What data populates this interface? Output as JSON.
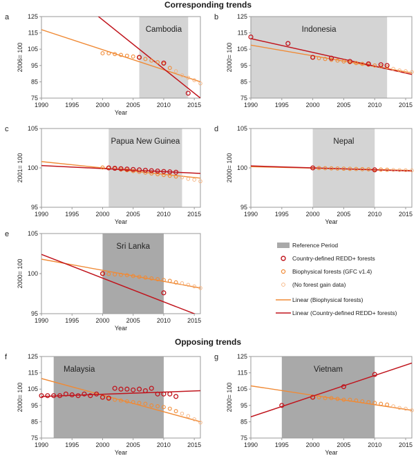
{
  "headings": {
    "corresponding": "Corresponding trends",
    "opposing": "Opposing trends"
  },
  "colors": {
    "redd": "#c0141c",
    "bio": "#f08a35",
    "bio_light": "#f5b07a",
    "ref_light": "#d4d4d4",
    "ref_dark": "#a9a9a9",
    "axis": "#9a9a9a",
    "text": "#222222"
  },
  "legend": [
    {
      "key": "ref",
      "label": "Reference Period"
    },
    {
      "key": "redd_pts",
      "label": "Country-defined REDD+ forests"
    },
    {
      "key": "bio_pts",
      "label": "Biophysical forests (GFC v1.4)"
    },
    {
      "key": "nogain",
      "label": "(No forest gain data)"
    },
    {
      "key": "bio_line",
      "label": "Linear (Biophysical forests)"
    },
    {
      "key": "redd_line",
      "label": "Linear (Country-defined REDD+ forests)"
    }
  ],
  "chart_data": [
    {
      "id": "a",
      "panel_letter": "a",
      "type": "scatter",
      "title": "Cambodia",
      "xlabel": "Year",
      "ylabel": "2006= 100",
      "xlim": [
        1990,
        2016
      ],
      "ylim": [
        75,
        125
      ],
      "xticks": [
        1990,
        1995,
        2000,
        2005,
        2010,
        2015
      ],
      "yticks": [
        75,
        85,
        95,
        105,
        115,
        125
      ],
      "ref_period": [
        2006,
        2014
      ],
      "ref_shade": "light",
      "redd_points": [
        {
          "x": 2006,
          "y": 100
        },
        {
          "x": 2010,
          "y": 96.5
        },
        {
          "x": 2014,
          "y": 78
        }
      ],
      "bio_points": [
        {
          "x": 2000,
          "y": 102.5
        },
        {
          "x": 2001,
          "y": 102.5
        },
        {
          "x": 2002,
          "y": 102
        },
        {
          "x": 2003,
          "y": 101.5
        },
        {
          "x": 2004,
          "y": 101
        },
        {
          "x": 2005,
          "y": 100.5
        },
        {
          "x": 2006,
          "y": 100
        },
        {
          "x": 2007,
          "y": 99
        },
        {
          "x": 2008,
          "y": 98
        },
        {
          "x": 2009,
          "y": 97
        },
        {
          "x": 2010,
          "y": 96
        },
        {
          "x": 2011,
          "y": 93.5
        }
      ],
      "nogain_points": [
        {
          "x": 2012,
          "y": 91.5
        },
        {
          "x": 2013,
          "y": 89
        },
        {
          "x": 2014,
          "y": 87.5
        },
        {
          "x": 2015,
          "y": 86
        },
        {
          "x": 2016,
          "y": 84
        }
      ],
      "bio_trend": {
        "x0": 1990,
        "y0": 117,
        "x1": 2016,
        "y1": 85
      },
      "redd_trend": {
        "x0": 1990,
        "y0": 153,
        "x1": 2016,
        "y1": 75
      }
    },
    {
      "id": "b",
      "panel_letter": "b",
      "type": "scatter",
      "title": "Indonesia",
      "xlabel": "",
      "ylabel": "2000= 100",
      "xlim": [
        1990,
        2016
      ],
      "ylim": [
        75,
        125
      ],
      "xticks": [
        1990,
        1995,
        2000,
        2005,
        2010,
        2015
      ],
      "yticks": [
        75,
        85,
        95,
        105,
        115,
        125
      ],
      "ref_period": [
        1990,
        2012
      ],
      "ref_shade": "light",
      "redd_points": [
        {
          "x": 1990,
          "y": 112.5
        },
        {
          "x": 1996,
          "y": 108.5
        },
        {
          "x": 2000,
          "y": 100
        },
        {
          "x": 2003,
          "y": 99.5
        },
        {
          "x": 2006,
          "y": 97.5
        },
        {
          "x": 2009,
          "y": 96
        },
        {
          "x": 2011,
          "y": 95.5
        },
        {
          "x": 2012,
          "y": 95
        }
      ],
      "bio_points": [
        {
          "x": 2000,
          "y": 100
        },
        {
          "x": 2001,
          "y": 99.5
        },
        {
          "x": 2002,
          "y": 99
        },
        {
          "x": 2003,
          "y": 98.5
        },
        {
          "x": 2004,
          "y": 98
        },
        {
          "x": 2005,
          "y": 97.5
        },
        {
          "x": 2006,
          "y": 97
        },
        {
          "x": 2007,
          "y": 96.5
        },
        {
          "x": 2008,
          "y": 96
        },
        {
          "x": 2009,
          "y": 95.5
        },
        {
          "x": 2010,
          "y": 95
        },
        {
          "x": 2011,
          "y": 94.5
        },
        {
          "x": 2012,
          "y": 94
        }
      ],
      "nogain_points": [
        {
          "x": 2013,
          "y": 93
        },
        {
          "x": 2014,
          "y": 92
        },
        {
          "x": 2015,
          "y": 91.5
        },
        {
          "x": 2016,
          "y": 91
        }
      ],
      "bio_trend": {
        "x0": 1990,
        "y0": 107.5,
        "x1": 2016,
        "y1": 90.5
      },
      "redd_trend": {
        "x0": 1990,
        "y0": 111.5,
        "x1": 2016,
        "y1": 89.5
      }
    },
    {
      "id": "c",
      "panel_letter": "c",
      "type": "scatter",
      "title": "Papua New Guinea",
      "xlabel": "Year",
      "ylabel": "2001= 100",
      "xlim": [
        1990,
        2016
      ],
      "ylim": [
        95,
        105
      ],
      "xticks": [
        1990,
        1995,
        2000,
        2005,
        2010,
        2015
      ],
      "yticks": [
        95,
        100,
        105
      ],
      "ref_period": [
        2001,
        2013
      ],
      "ref_shade": "light",
      "redd_points": [
        {
          "x": 2001,
          "y": 100
        },
        {
          "x": 2002,
          "y": 99.95
        },
        {
          "x": 2003,
          "y": 99.9
        },
        {
          "x": 2004,
          "y": 99.85
        },
        {
          "x": 2005,
          "y": 99.8
        },
        {
          "x": 2006,
          "y": 99.75
        },
        {
          "x": 2007,
          "y": 99.7
        },
        {
          "x": 2008,
          "y": 99.65
        },
        {
          "x": 2009,
          "y": 99.6
        },
        {
          "x": 2010,
          "y": 99.55
        },
        {
          "x": 2011,
          "y": 99.5
        },
        {
          "x": 2012,
          "y": 99.45
        }
      ],
      "bio_points": [
        {
          "x": 2000,
          "y": 100.05
        },
        {
          "x": 2001,
          "y": 100
        },
        {
          "x": 2002,
          "y": 99.9
        },
        {
          "x": 2003,
          "y": 99.8
        },
        {
          "x": 2004,
          "y": 99.7
        },
        {
          "x": 2005,
          "y": 99.6
        },
        {
          "x": 2006,
          "y": 99.5
        },
        {
          "x": 2007,
          "y": 99.4
        },
        {
          "x": 2008,
          "y": 99.3
        },
        {
          "x": 2009,
          "y": 99.2
        },
        {
          "x": 2010,
          "y": 99.1
        },
        {
          "x": 2011,
          "y": 99.0
        },
        {
          "x": 2012,
          "y": 98.9
        }
      ],
      "nogain_points": [
        {
          "x": 2013,
          "y": 98.8
        },
        {
          "x": 2014,
          "y": 98.6
        },
        {
          "x": 2015,
          "y": 98.5
        },
        {
          "x": 2016,
          "y": 98.3
        }
      ],
      "bio_trend": {
        "x0": 1990,
        "y0": 100.8,
        "x1": 2016,
        "y1": 98.7
      },
      "redd_trend": {
        "x0": 1990,
        "y0": 100.3,
        "x1": 2016,
        "y1": 99.3
      }
    },
    {
      "id": "d",
      "panel_letter": "d",
      "type": "scatter",
      "title": "Nepal",
      "xlabel": "Year",
      "ylabel": "2000= 100",
      "xlim": [
        1990,
        2016
      ],
      "ylim": [
        95,
        105
      ],
      "xticks": [
        1990,
        1995,
        2000,
        2005,
        2010,
        2015
      ],
      "yticks": [
        95,
        100,
        105
      ],
      "ref_period": [
        2000,
        2010
      ],
      "ref_shade": "light",
      "redd_points": [
        {
          "x": 2000,
          "y": 100
        },
        {
          "x": 2010,
          "y": 99.75
        }
      ],
      "bio_points": [
        {
          "x": 2000,
          "y": 100
        },
        {
          "x": 2001,
          "y": 99.98
        },
        {
          "x": 2002,
          "y": 99.96
        },
        {
          "x": 2003,
          "y": 99.94
        },
        {
          "x": 2004,
          "y": 99.92
        },
        {
          "x": 2005,
          "y": 99.9
        },
        {
          "x": 2006,
          "y": 99.88
        },
        {
          "x": 2007,
          "y": 99.86
        },
        {
          "x": 2008,
          "y": 99.84
        },
        {
          "x": 2009,
          "y": 99.82
        },
        {
          "x": 2010,
          "y": 99.8
        },
        {
          "x": 2011,
          "y": 99.78
        },
        {
          "x": 2012,
          "y": 99.76
        }
      ],
      "nogain_points": [
        {
          "x": 2013,
          "y": 99.74
        },
        {
          "x": 2014,
          "y": 99.72
        },
        {
          "x": 2015,
          "y": 99.7
        },
        {
          "x": 2016,
          "y": 99.68
        }
      ],
      "bio_trend": {
        "x0": 1990,
        "y0": 100.15,
        "x1": 2016,
        "y1": 99.68
      },
      "redd_trend": {
        "x0": 1990,
        "y0": 100.25,
        "x1": 2016,
        "y1": 99.6
      }
    },
    {
      "id": "e",
      "panel_letter": "e",
      "type": "scatter",
      "title": "Sri Lanka",
      "xlabel": "Year",
      "ylabel": "2000= 100",
      "xlim": [
        1990,
        2016
      ],
      "ylim": [
        95,
        105
      ],
      "xticks": [
        1990,
        1995,
        2000,
        2005,
        2010,
        2015
      ],
      "yticks": [
        95,
        100,
        105
      ],
      "ref_period": [
        2000,
        2010
      ],
      "ref_shade": "dark",
      "redd_points": [
        {
          "x": 2000,
          "y": 100
        },
        {
          "x": 2010,
          "y": 97.6
        }
      ],
      "bio_points": [
        {
          "x": 2000,
          "y": 100
        },
        {
          "x": 2001,
          "y": 99.95
        },
        {
          "x": 2002,
          "y": 99.9
        },
        {
          "x": 2003,
          "y": 99.85
        },
        {
          "x": 2004,
          "y": 99.8
        },
        {
          "x": 2005,
          "y": 99.7
        },
        {
          "x": 2006,
          "y": 99.6
        },
        {
          "x": 2007,
          "y": 99.5
        },
        {
          "x": 2008,
          "y": 99.4
        },
        {
          "x": 2009,
          "y": 99.3
        },
        {
          "x": 2010,
          "y": 99.2
        },
        {
          "x": 2011,
          "y": 99.1
        },
        {
          "x": 2012,
          "y": 98.9
        }
      ],
      "nogain_points": [
        {
          "x": 2013,
          "y": 98.8
        },
        {
          "x": 2014,
          "y": 98.6
        },
        {
          "x": 2015,
          "y": 98.4
        },
        {
          "x": 2016,
          "y": 98.2
        }
      ],
      "bio_trend": {
        "x0": 1990,
        "y0": 101.8,
        "x1": 2016,
        "y1": 98.2
      },
      "redd_trend": {
        "x0": 1990,
        "y0": 102.4,
        "x1": 2016,
        "y1": 94.7
      }
    },
    {
      "id": "f",
      "panel_letter": "f",
      "type": "scatter",
      "title": "Malaysia",
      "xlabel": "Year",
      "ylabel": "2000= 100",
      "xlim": [
        1990,
        2016
      ],
      "ylim": [
        75,
        125
      ],
      "xticks": [
        1990,
        1995,
        2000,
        2005,
        2010,
        2015
      ],
      "yticks": [
        75,
        85,
        95,
        105,
        115,
        125
      ],
      "ref_period": [
        1992,
        2010
      ],
      "ref_shade": "dark",
      "redd_points": [
        {
          "x": 1990,
          "y": 101
        },
        {
          "x": 1991,
          "y": 101
        },
        {
          "x": 1992,
          "y": 101
        },
        {
          "x": 1993,
          "y": 101
        },
        {
          "x": 1994,
          "y": 102
        },
        {
          "x": 1995,
          "y": 101.5
        },
        {
          "x": 1996,
          "y": 101
        },
        {
          "x": 1997,
          "y": 102
        },
        {
          "x": 1998,
          "y": 101
        },
        {
          "x": 1999,
          "y": 102
        },
        {
          "x": 2000,
          "y": 100
        },
        {
          "x": 2001,
          "y": 99.5
        },
        {
          "x": 2002,
          "y": 105.5
        },
        {
          "x": 2003,
          "y": 105
        },
        {
          "x": 2004,
          "y": 105
        },
        {
          "x": 2005,
          "y": 104.5
        },
        {
          "x": 2006,
          "y": 105
        },
        {
          "x": 2007,
          "y": 104
        },
        {
          "x": 2008,
          "y": 105.5
        },
        {
          "x": 2009,
          "y": 102
        },
        {
          "x": 2010,
          "y": 102
        },
        {
          "x": 2011,
          "y": 102
        },
        {
          "x": 2012,
          "y": 100.5
        }
      ],
      "bio_points": [
        {
          "x": 2000,
          "y": 100
        },
        {
          "x": 2001,
          "y": 99
        },
        {
          "x": 2002,
          "y": 98.5
        },
        {
          "x": 2003,
          "y": 98
        },
        {
          "x": 2004,
          "y": 97.5
        },
        {
          "x": 2005,
          "y": 97
        },
        {
          "x": 2006,
          "y": 96.5
        },
        {
          "x": 2007,
          "y": 96
        },
        {
          "x": 2008,
          "y": 95
        },
        {
          "x": 2009,
          "y": 94.5
        },
        {
          "x": 2010,
          "y": 94
        },
        {
          "x": 2011,
          "y": 93
        },
        {
          "x": 2012,
          "y": 91.5
        }
      ],
      "nogain_points": [
        {
          "x": 2013,
          "y": 90
        },
        {
          "x": 2014,
          "y": 88.5
        },
        {
          "x": 2015,
          "y": 86.5
        },
        {
          "x": 2016,
          "y": 84.5
        }
      ],
      "bio_trend": {
        "x0": 1990,
        "y0": 111.5,
        "x1": 2016,
        "y1": 85
      },
      "redd_trend": {
        "x0": 1990,
        "y0": 100.5,
        "x1": 2016,
        "y1": 104
      }
    },
    {
      "id": "g",
      "panel_letter": "g",
      "type": "scatter",
      "title": "Vietnam",
      "xlabel": "Year",
      "ylabel": "2000= 100",
      "xlim": [
        1990,
        2016
      ],
      "ylim": [
        75,
        125
      ],
      "xticks": [
        1990,
        1995,
        2000,
        2005,
        2010,
        2015
      ],
      "yticks": [
        75,
        85,
        95,
        105,
        115,
        125
      ],
      "ref_period": [
        1995,
        2010
      ],
      "ref_shade": "dark",
      "redd_points": [
        {
          "x": 1995,
          "y": 95
        },
        {
          "x": 2000,
          "y": 100
        },
        {
          "x": 2005,
          "y": 106.5
        },
        {
          "x": 2010,
          "y": 114
        }
      ],
      "bio_points": [
        {
          "x": 2000,
          "y": 100
        },
        {
          "x": 2001,
          "y": 100
        },
        {
          "x": 2002,
          "y": 99.5
        },
        {
          "x": 2003,
          "y": 99.5
        },
        {
          "x": 2004,
          "y": 99
        },
        {
          "x": 2005,
          "y": 98.5
        },
        {
          "x": 2006,
          "y": 98.5
        },
        {
          "x": 2007,
          "y": 98
        },
        {
          "x": 2008,
          "y": 97.5
        },
        {
          "x": 2009,
          "y": 97
        },
        {
          "x": 2010,
          "y": 96.5
        },
        {
          "x": 2011,
          "y": 96
        },
        {
          "x": 2012,
          "y": 95.5
        }
      ],
      "nogain_points": [
        {
          "x": 2013,
          "y": 94.5
        },
        {
          "x": 2014,
          "y": 93.5
        },
        {
          "x": 2015,
          "y": 93
        },
        {
          "x": 2016,
          "y": 92
        }
      ],
      "bio_trend": {
        "x0": 1990,
        "y0": 107,
        "x1": 2016,
        "y1": 92
      },
      "redd_trend": {
        "x0": 1990,
        "y0": 88,
        "x1": 2016,
        "y1": 121
      }
    }
  ]
}
